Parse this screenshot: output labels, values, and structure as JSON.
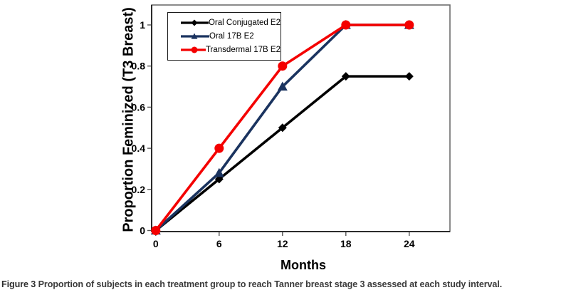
{
  "figure": {
    "caption_label": "Figure 3",
    "caption_text": "Proportion of subjects in each treatment group to reach Tanner breast stage 3 assessed at each study interval."
  },
  "chart_data": {
    "type": "line",
    "title": "",
    "xlabel": "Months",
    "ylabel": "Proportion Feminized (T3 Breast)",
    "x": [
      0,
      6,
      12,
      18,
      24
    ],
    "x_tick_labels": [
      "0",
      "6",
      "12",
      "18",
      "24"
    ],
    "y_tick_values": [
      0,
      0.2,
      0.4,
      0.6,
      0.8,
      1
    ],
    "y_tick_labels": [
      "0",
      "0.2",
      "0.4",
      "0.6",
      "0.8",
      "1"
    ],
    "xlim": [
      0,
      28
    ],
    "ylim": [
      0,
      1.1
    ],
    "grid": false,
    "legend_position": "top-left-inside",
    "series": [
      {
        "name": "Oral Conjugated E2",
        "color": "#000000",
        "marker": "diamond",
        "values": [
          0,
          0.25,
          0.5,
          0.75,
          0.75
        ]
      },
      {
        "name": "Oral 17B E2",
        "color": "#1a335f",
        "marker": "triangle",
        "values": [
          0,
          0.28,
          0.7,
          1.0,
          1.0
        ]
      },
      {
        "name": "Transdermal 17B E2",
        "color": "#f40000",
        "marker": "circle",
        "values": [
          0,
          0.4,
          0.8,
          1.0,
          1.0
        ]
      }
    ]
  }
}
